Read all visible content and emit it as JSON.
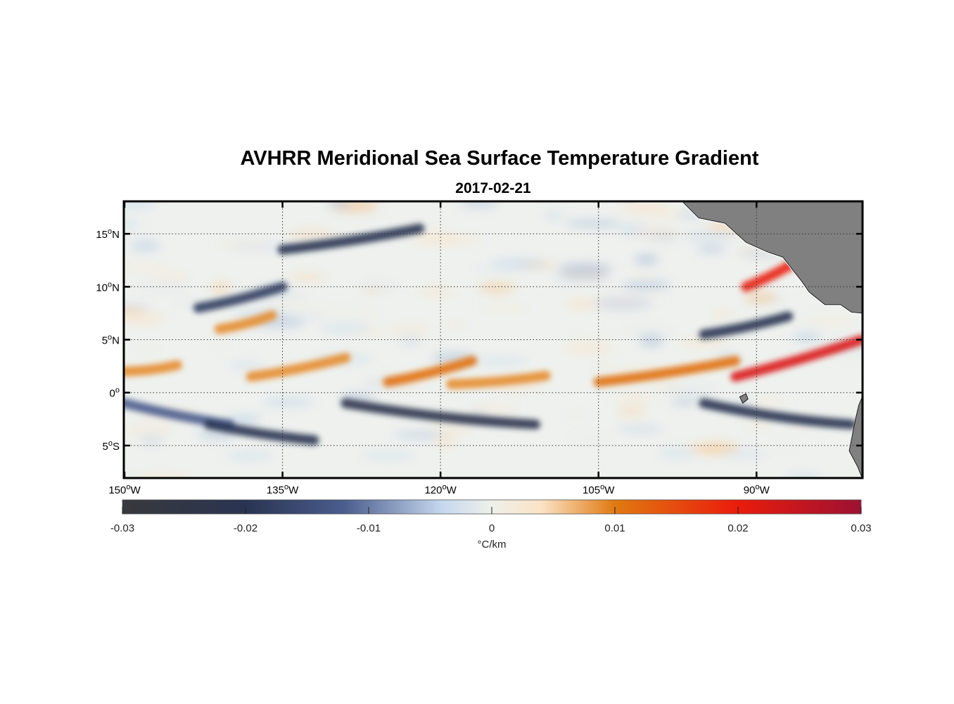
{
  "chart_data": {
    "type": "heatmap",
    "title": "AVHRR Meridional Sea Surface Temperature Gradient",
    "subtitle": "2017-02-21",
    "x_ticks": [
      {
        "value": -150,
        "deg": "150",
        "sup": "o",
        "hemi": "W"
      },
      {
        "value": -135,
        "deg": "135",
        "sup": "o",
        "hemi": "W"
      },
      {
        "value": -120,
        "deg": "120",
        "sup": "o",
        "hemi": "W"
      },
      {
        "value": -105,
        "deg": "105",
        "sup": "o",
        "hemi": "W"
      },
      {
        "value": -90,
        "deg": "90",
        "sup": "o",
        "hemi": "W"
      }
    ],
    "y_ticks": [
      {
        "value": 15,
        "deg": "15",
        "sup": "o",
        "hemi": "N"
      },
      {
        "value": 10,
        "deg": "10",
        "sup": "o",
        "hemi": "N"
      },
      {
        "value": 5,
        "deg": "5",
        "sup": "o",
        "hemi": "N"
      },
      {
        "value": 0,
        "deg": "0",
        "sup": "o",
        "hemi": ""
      },
      {
        "value": -5,
        "deg": "5",
        "sup": "o",
        "hemi": "S"
      }
    ],
    "lon_range": [
      -150,
      -80
    ],
    "lat_range": [
      -8,
      18
    ],
    "grid": "dotted",
    "colorbar": {
      "position": "bottom",
      "range": [
        -0.03,
        0.03
      ],
      "ticks": [
        "-0.03",
        "-0.02",
        "-0.01",
        "0",
        "0.01",
        "0.02",
        "0.03"
      ],
      "tick_values": [
        -0.03,
        -0.02,
        -0.01,
        0,
        0.01,
        0.02,
        0.03
      ],
      "label": "°C/km",
      "colormap_stops": [
        {
          "v": -0.03,
          "color": "#38393c"
        },
        {
          "v": -0.02,
          "color": "#2a3452"
        },
        {
          "v": -0.012,
          "color": "#4a5d8e"
        },
        {
          "v": -0.004,
          "color": "#c6d8ee"
        },
        {
          "v": 0,
          "color": "#eef0ea"
        },
        {
          "v": 0.004,
          "color": "#fbe3c6"
        },
        {
          "v": 0.01,
          "color": "#e07a10"
        },
        {
          "v": 0.02,
          "color": "#ea1c0c"
        },
        {
          "v": 0.03,
          "color": "#9c1133"
        }
      ]
    },
    "features": [
      {
        "kind": "front",
        "sign": "positive",
        "lon": [
          -150,
          -145
        ],
        "lat": [
          2,
          2.6
        ],
        "value": 0.009
      },
      {
        "kind": "front",
        "sign": "positive",
        "lon": [
          -141,
          -136
        ],
        "lat": [
          6,
          7.3
        ],
        "value": 0.009
      },
      {
        "kind": "front",
        "sign": "positive",
        "lon": [
          -138,
          -129
        ],
        "lat": [
          1.5,
          3.3
        ],
        "value": 0.009
      },
      {
        "kind": "front",
        "sign": "positive",
        "lon": [
          -125,
          -117
        ],
        "lat": [
          1,
          3
        ],
        "value": 0.011
      },
      {
        "kind": "front",
        "sign": "positive",
        "lon": [
          -119,
          -110
        ],
        "lat": [
          0.8,
          1.6
        ],
        "value": 0.009
      },
      {
        "kind": "front",
        "sign": "positive",
        "lon": [
          -105,
          -92
        ],
        "lat": [
          1,
          3
        ],
        "value": 0.011
      },
      {
        "kind": "front",
        "sign": "positive",
        "lon": [
          -92,
          -80
        ],
        "lat": [
          1.5,
          5
        ],
        "value": 0.022
      },
      {
        "kind": "front",
        "sign": "positive",
        "lon": [
          -91,
          -86
        ],
        "lat": [
          10,
          12.5
        ],
        "value": 0.02
      },
      {
        "kind": "front",
        "sign": "negative",
        "lon": [
          -150,
          -140
        ],
        "lat": [
          -1,
          -3
        ],
        "value": -0.012
      },
      {
        "kind": "front",
        "sign": "negative",
        "lon": [
          -142,
          -132
        ],
        "lat": [
          -3,
          -4.5
        ],
        "value": -0.02
      },
      {
        "kind": "front",
        "sign": "negative",
        "lon": [
          -129,
          -111
        ],
        "lat": [
          -1,
          -3
        ],
        "value": -0.022
      },
      {
        "kind": "front",
        "sign": "negative",
        "lon": [
          -95,
          -81
        ],
        "lat": [
          -1,
          -3
        ],
        "value": -0.02
      },
      {
        "kind": "front",
        "sign": "negative",
        "lon": [
          -95,
          -87
        ],
        "lat": [
          5.5,
          7.2
        ],
        "value": -0.02
      },
      {
        "kind": "front",
        "sign": "negative",
        "lon": [
          -143,
          -135
        ],
        "lat": [
          8,
          10
        ],
        "value": -0.018
      },
      {
        "kind": "front",
        "sign": "negative",
        "lon": [
          -135,
          -122
        ],
        "lat": [
          13.5,
          15.5
        ],
        "value": -0.02
      }
    ]
  }
}
